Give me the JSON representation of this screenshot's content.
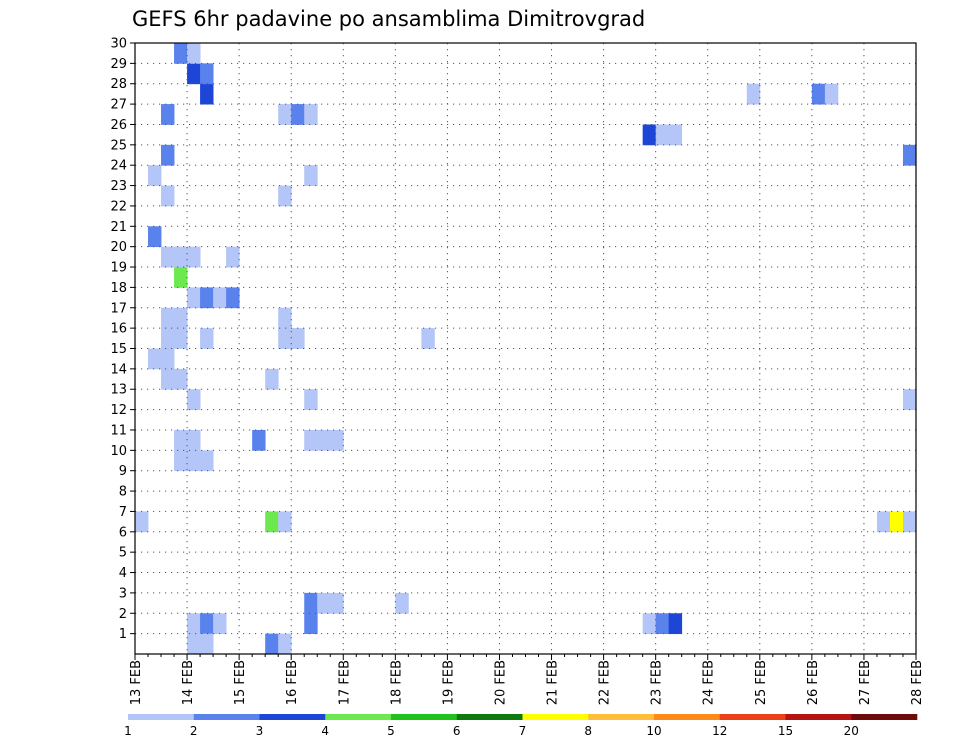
{
  "chart_data": {
    "type": "heatmap",
    "title": "GEFS 6hr padavine po ansamblima Dimitrovgrad",
    "xlabel": "",
    "ylabel": "",
    "x_tick_labels": [
      "13 FEB",
      "14 FEB",
      "15 FEB",
      "16 FEB",
      "17 FEB",
      "18 FEB",
      "19 FEB",
      "20 FEB",
      "21 FEB",
      "22 FEB",
      "23 FEB",
      "24 FEB",
      "25 FEB",
      "26 FEB",
      "27 FEB",
      "28 FEB"
    ],
    "xlim_days": [
      13,
      28
    ],
    "steps_per_day": 4,
    "y_tick_labels": [
      "1",
      "2",
      "3",
      "4",
      "5",
      "6",
      "7",
      "8",
      "9",
      "10",
      "11",
      "12",
      "13",
      "14",
      "15",
      "16",
      "17",
      "18",
      "19",
      "20",
      "21",
      "22",
      "23",
      "24",
      "25",
      "26",
      "27",
      "28",
      "29",
      "30"
    ],
    "ylim": [
      0,
      30
    ],
    "grid": true,
    "legend": {
      "placement": "bottom",
      "tick_labels": [
        "1",
        "2",
        "3",
        "4",
        "5",
        "6",
        "7",
        "8",
        "10",
        "12",
        "15",
        "20"
      ],
      "colors": [
        "#b4c6f7",
        "#5a82ed",
        "#1d46d6",
        "#6ee84f",
        "#21c21d",
        "#0e7a0e",
        "#ffff00",
        "#ffbd3a",
        "#ff8a1a",
        "#ec4016",
        "#b51512",
        "#6e0a0a"
      ]
    },
    "cells": [
      {
        "member": 1,
        "step": 4,
        "cls": 0
      },
      {
        "member": 1,
        "step": 5,
        "cls": 1
      },
      {
        "member": 1,
        "step": 6,
        "cls": 0
      },
      {
        "member": 1,
        "step": 13,
        "cls": 1
      },
      {
        "member": 1,
        "step": 39,
        "cls": 0
      },
      {
        "member": 1,
        "step": 40,
        "cls": 1
      },
      {
        "member": 1,
        "step": 41,
        "cls": 2
      },
      {
        "member": 0,
        "step": 4,
        "cls": 0
      },
      {
        "member": 0,
        "step": 5,
        "cls": 0
      },
      {
        "member": 0,
        "step": 10,
        "cls": 1
      },
      {
        "member": 0,
        "step": 11,
        "cls": 0
      },
      {
        "member": 2,
        "step": 13,
        "cls": 1
      },
      {
        "member": 2,
        "step": 14,
        "cls": 0
      },
      {
        "member": 2,
        "step": 15,
        "cls": 0
      },
      {
        "member": 2,
        "step": 20,
        "cls": 0
      },
      {
        "member": 6,
        "step": 0,
        "cls": 0
      },
      {
        "member": 6,
        "step": 10,
        "cls": 3
      },
      {
        "member": 6,
        "step": 11,
        "cls": 0
      },
      {
        "member": 6,
        "step": 57,
        "cls": 0
      },
      {
        "member": 6,
        "step": 58,
        "cls": 6
      },
      {
        "member": 6,
        "step": 59,
        "cls": 0
      },
      {
        "member": 9,
        "step": 3,
        "cls": 0
      },
      {
        "member": 9,
        "step": 4,
        "cls": 0
      },
      {
        "member": 9,
        "step": 5,
        "cls": 0
      },
      {
        "member": 10,
        "step": 3,
        "cls": 0
      },
      {
        "member": 10,
        "step": 4,
        "cls": 0
      },
      {
        "member": 10,
        "step": 9,
        "cls": 1
      },
      {
        "member": 10,
        "step": 13,
        "cls": 0
      },
      {
        "member": 10,
        "step": 14,
        "cls": 0
      },
      {
        "member": 10,
        "step": 15,
        "cls": 0
      },
      {
        "member": 12,
        "step": 4,
        "cls": 0
      },
      {
        "member": 12,
        "step": 13,
        "cls": 0
      },
      {
        "member": 12,
        "step": 59,
        "cls": 0
      },
      {
        "member": 13,
        "step": 2,
        "cls": 0
      },
      {
        "member": 13,
        "step": 3,
        "cls": 0
      },
      {
        "member": 13,
        "step": 10,
        "cls": 0
      },
      {
        "member": 14,
        "step": 1,
        "cls": 0
      },
      {
        "member": 14,
        "step": 2,
        "cls": 0
      },
      {
        "member": 15,
        "step": 2,
        "cls": 0
      },
      {
        "member": 15,
        "step": 3,
        "cls": 0
      },
      {
        "member": 15,
        "step": 5,
        "cls": 0
      },
      {
        "member": 15,
        "step": 11,
        "cls": 0
      },
      {
        "member": 15,
        "step": 12,
        "cls": 0
      },
      {
        "member": 15,
        "step": 22,
        "cls": 0
      },
      {
        "member": 16,
        "step": 2,
        "cls": 0
      },
      {
        "member": 16,
        "step": 3,
        "cls": 0
      },
      {
        "member": 16,
        "step": 11,
        "cls": 0
      },
      {
        "member": 17,
        "step": 4,
        "cls": 0
      },
      {
        "member": 17,
        "step": 5,
        "cls": 1
      },
      {
        "member": 17,
        "step": 6,
        "cls": 0
      },
      {
        "member": 17,
        "step": 7,
        "cls": 1
      },
      {
        "member": 18,
        "step": 3,
        "cls": 3
      },
      {
        "member": 19,
        "step": 2,
        "cls": 0
      },
      {
        "member": 19,
        "step": 3,
        "cls": 0
      },
      {
        "member": 19,
        "step": 4,
        "cls": 0
      },
      {
        "member": 19,
        "step": 7,
        "cls": 0
      },
      {
        "member": 20,
        "step": 1,
        "cls": 1
      },
      {
        "member": 22,
        "step": 2,
        "cls": 0
      },
      {
        "member": 22,
        "step": 11,
        "cls": 0
      },
      {
        "member": 23,
        "step": 1,
        "cls": 0
      },
      {
        "member": 23,
        "step": 13,
        "cls": 0
      },
      {
        "member": 24,
        "step": 2,
        "cls": 1
      },
      {
        "member": 24,
        "step": 59,
        "cls": 1
      },
      {
        "member": 25,
        "step": 39,
        "cls": 2
      },
      {
        "member": 25,
        "step": 40,
        "cls": 0
      },
      {
        "member": 25,
        "step": 41,
        "cls": 0
      },
      {
        "member": 26,
        "step": 2,
        "cls": 1
      },
      {
        "member": 26,
        "step": 11,
        "cls": 0
      },
      {
        "member": 26,
        "step": 12,
        "cls": 1
      },
      {
        "member": 26,
        "step": 13,
        "cls": 0
      },
      {
        "member": 27,
        "step": 5,
        "cls": 2
      },
      {
        "member": 27,
        "step": 47,
        "cls": 0
      },
      {
        "member": 27,
        "step": 52,
        "cls": 1
      },
      {
        "member": 27,
        "step": 53,
        "cls": 0
      },
      {
        "member": 28,
        "step": 4,
        "cls": 2
      },
      {
        "member": 28,
        "step": 5,
        "cls": 1
      },
      {
        "member": 29,
        "step": 3,
        "cls": 1
      },
      {
        "member": 29,
        "step": 4,
        "cls": 0
      }
    ]
  }
}
